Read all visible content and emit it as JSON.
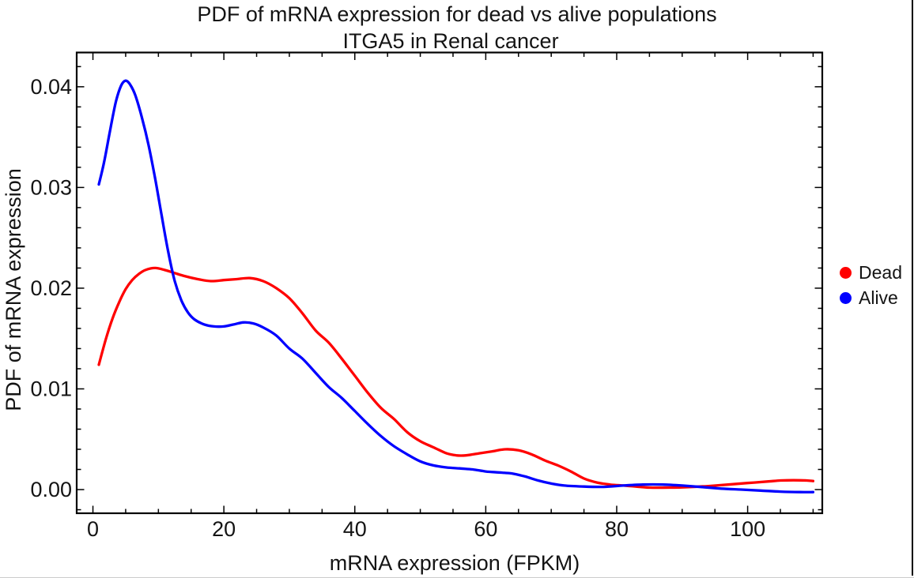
{
  "window": {
    "background": "#ffffff",
    "right_border_color": "#000000",
    "bottom_border_color": "#cccccc"
  },
  "chart_data": {
    "type": "line",
    "title": "PDF of mRNA expression for dead vs alive populations",
    "subtitle": "ITGA5 in Renal cancer",
    "xlabel": "mRNA expression (FPKM)",
    "ylabel": "PDF of mRNA expression",
    "xlim": [
      -2.48,
      111.4
    ],
    "ylim": [
      -0.00235,
      0.0434
    ],
    "x_major_ticks": [
      0,
      20,
      40,
      60,
      80,
      100
    ],
    "x_minor_step": 5,
    "y_major_ticks": [
      0,
      0.01,
      0.02,
      0.03,
      0.04
    ],
    "y_minor_step": 0.002,
    "grid": false,
    "frame": true,
    "frame_color": "#000000",
    "legend_position": "right-outside",
    "legend": [
      {
        "label": "Dead",
        "color": "#ff0000"
      },
      {
        "label": "Alive",
        "color": "#0000ff"
      }
    ],
    "series": [
      {
        "name": "Dead",
        "color": "#ff0000",
        "points": [
          [
            0.9,
            0.0124
          ],
          [
            2,
            0.015
          ],
          [
            3,
            0.017
          ],
          [
            4,
            0.0186
          ],
          [
            5,
            0.0199
          ],
          [
            6,
            0.0208
          ],
          [
            7,
            0.0214
          ],
          [
            8,
            0.0218
          ],
          [
            9.5,
            0.022
          ],
          [
            11,
            0.0218
          ],
          [
            12.5,
            0.0215
          ],
          [
            14,
            0.0212
          ],
          [
            16,
            0.0209
          ],
          [
            18,
            0.0207
          ],
          [
            20,
            0.0208
          ],
          [
            22,
            0.0209
          ],
          [
            24,
            0.021
          ],
          [
            26,
            0.0207
          ],
          [
            28,
            0.02
          ],
          [
            30,
            0.019
          ],
          [
            32,
            0.0175
          ],
          [
            34,
            0.0158
          ],
          [
            36,
            0.0146
          ],
          [
            38,
            0.013
          ],
          [
            40,
            0.0113
          ],
          [
            42,
            0.0096
          ],
          [
            44,
            0.0081
          ],
          [
            46,
            0.007
          ],
          [
            48,
            0.0057
          ],
          [
            50,
            0.0048
          ],
          [
            52,
            0.0042
          ],
          [
            54,
            0.0036
          ],
          [
            55.5,
            0.0034
          ],
          [
            57,
            0.0034
          ],
          [
            59,
            0.0036
          ],
          [
            61,
            0.0038
          ],
          [
            63,
            0.004
          ],
          [
            65,
            0.0039
          ],
          [
            67,
            0.0035
          ],
          [
            69,
            0.0029
          ],
          [
            71,
            0.0024
          ],
          [
            73,
            0.0018
          ],
          [
            75,
            0.0011
          ],
          [
            77,
            0.0007
          ],
          [
            79,
            0.0005
          ],
          [
            81,
            0.0004
          ],
          [
            83,
            0.0003
          ],
          [
            85,
            0.0002
          ],
          [
            88,
            0.0002
          ],
          [
            91,
            0.00025
          ],
          [
            94,
            0.00035
          ],
          [
            97,
            0.0005
          ],
          [
            100,
            0.00065
          ],
          [
            103,
            0.0008
          ],
          [
            105,
            0.0009
          ],
          [
            107,
            0.00093
          ],
          [
            109,
            0.0009
          ],
          [
            110,
            0.00085
          ]
        ]
      },
      {
        "name": "Alive",
        "color": "#0000ff",
        "points": [
          [
            0.9,
            0.0303
          ],
          [
            1.7,
            0.0325
          ],
          [
            2.6,
            0.0356
          ],
          [
            3.5,
            0.0385
          ],
          [
            4.3,
            0.0401
          ],
          [
            5,
            0.0406
          ],
          [
            5.7,
            0.0402
          ],
          [
            6.5,
            0.0391
          ],
          [
            7.5,
            0.0369
          ],
          [
            8.5,
            0.0342
          ],
          [
            9.5,
            0.0309
          ],
          [
            10.5,
            0.0272
          ],
          [
            11.5,
            0.0236
          ],
          [
            12.5,
            0.0207
          ],
          [
            13.5,
            0.0188
          ],
          [
            14.5,
            0.0176
          ],
          [
            15.5,
            0.0169
          ],
          [
            17,
            0.0164
          ],
          [
            18.5,
            0.0162
          ],
          [
            20,
            0.0162
          ],
          [
            21.5,
            0.0164
          ],
          [
            23,
            0.0166
          ],
          [
            24.5,
            0.0165
          ],
          [
            26,
            0.0161
          ],
          [
            28,
            0.0153
          ],
          [
            30,
            0.014
          ],
          [
            32,
            0.013
          ],
          [
            34,
            0.0116
          ],
          [
            36,
            0.0102
          ],
          [
            38,
            0.0091
          ],
          [
            40,
            0.0078
          ],
          [
            42,
            0.0065
          ],
          [
            44,
            0.0053
          ],
          [
            46,
            0.0043
          ],
          [
            48,
            0.0035
          ],
          [
            50,
            0.0028
          ],
          [
            52,
            0.0024
          ],
          [
            54,
            0.0022
          ],
          [
            56,
            0.0021
          ],
          [
            58,
            0.002
          ],
          [
            60,
            0.0018
          ],
          [
            62,
            0.0017
          ],
          [
            64,
            0.0016
          ],
          [
            66,
            0.0013
          ],
          [
            68,
            0.0009
          ],
          [
            70,
            0.0006
          ],
          [
            72,
            0.0004
          ],
          [
            75,
            0.0003
          ],
          [
            78,
            0.00027
          ],
          [
            81,
            0.0004
          ],
          [
            84,
            0.0005
          ],
          [
            87,
            0.0005
          ],
          [
            90,
            0.0004
          ],
          [
            93,
            0.00025
          ],
          [
            96,
            0.0001
          ],
          [
            99,
            0
          ],
          [
            102,
            -0.0001
          ],
          [
            105,
            -0.0002
          ],
          [
            108,
            -0.00025
          ],
          [
            110,
            -0.00025
          ]
        ]
      }
    ]
  }
}
